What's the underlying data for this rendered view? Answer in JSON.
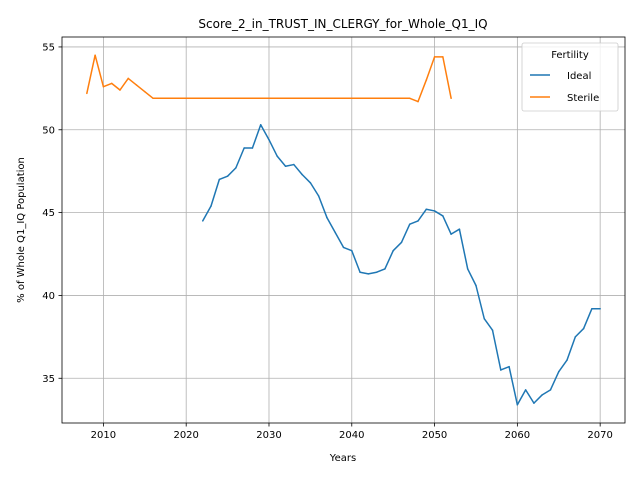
{
  "chart_data": {
    "type": "line",
    "title": "Score_2_in_TRUST_IN_CLERGY_for_Whole_Q1_IQ",
    "xlabel": "Years",
    "ylabel": "% of Whole Q1_IQ Population",
    "xlim": [
      2005,
      2073
    ],
    "ylim": [
      32.3,
      55.6
    ],
    "xticks": [
      2010,
      2020,
      2030,
      2040,
      2050,
      2060,
      2070
    ],
    "yticks": [
      35,
      40,
      45,
      50,
      55
    ],
    "grid": true,
    "legend": {
      "title": "Fertility",
      "placement": "top-right"
    },
    "series": [
      {
        "name": "Ideal",
        "color": "#1f77b4",
        "x": [
          2022,
          2023,
          2024,
          2025,
          2026,
          2027,
          2028,
          2029,
          2030,
          2031,
          2032,
          2033,
          2034,
          2035,
          2036,
          2037,
          2038,
          2039,
          2040,
          2041,
          2042,
          2043,
          2044,
          2045,
          2046,
          2047,
          2048,
          2049,
          2050,
          2051,
          2052,
          2053,
          2054,
          2055,
          2056,
          2057,
          2058,
          2059,
          2060,
          2061,
          2062,
          2063,
          2064,
          2065,
          2066,
          2067,
          2068,
          2069,
          2070
        ],
        "y": [
          44.5,
          45.4,
          47.0,
          47.2,
          47.7,
          48.9,
          48.9,
          50.3,
          49.4,
          48.4,
          47.8,
          47.9,
          47.3,
          46.8,
          46.0,
          44.7,
          43.8,
          42.9,
          42.7,
          41.4,
          41.3,
          41.4,
          41.6,
          42.7,
          43.2,
          44.3,
          44.5,
          45.2,
          45.1,
          44.8,
          43.7,
          44.0,
          41.6,
          40.6,
          38.6,
          37.9,
          35.5,
          35.7,
          33.4,
          34.3,
          33.5,
          34.0,
          34.3,
          35.4,
          36.1,
          37.5,
          38.0,
          39.2,
          39.2
        ]
      },
      {
        "name": "Sterile",
        "color": "#ff7f0e",
        "x": [
          2008,
          2009,
          2010,
          2011,
          2012,
          2013,
          2014,
          2015,
          2016,
          2017,
          2018,
          2019,
          2020,
          2021,
          2022,
          2023,
          2024,
          2025,
          2026,
          2027,
          2028,
          2029,
          2030,
          2031,
          2032,
          2033,
          2034,
          2035,
          2036,
          2037,
          2038,
          2039,
          2040,
          2041,
          2042,
          2043,
          2044,
          2045,
          2046,
          2047,
          2048,
          2049,
          2050,
          2051,
          2052
        ],
        "y": [
          52.2,
          54.5,
          52.6,
          52.8,
          52.4,
          53.1,
          52.7,
          52.3,
          51.9,
          51.9,
          51.9,
          51.9,
          51.9,
          51.9,
          51.9,
          51.9,
          51.9,
          51.9,
          51.9,
          51.9,
          51.9,
          51.9,
          51.9,
          51.9,
          51.9,
          51.9,
          51.9,
          51.9,
          51.9,
          51.9,
          51.9,
          51.9,
          51.9,
          51.9,
          51.9,
          51.9,
          51.9,
          51.9,
          51.9,
          51.9,
          51.7,
          53.0,
          54.4,
          54.4,
          51.9
        ]
      }
    ]
  }
}
